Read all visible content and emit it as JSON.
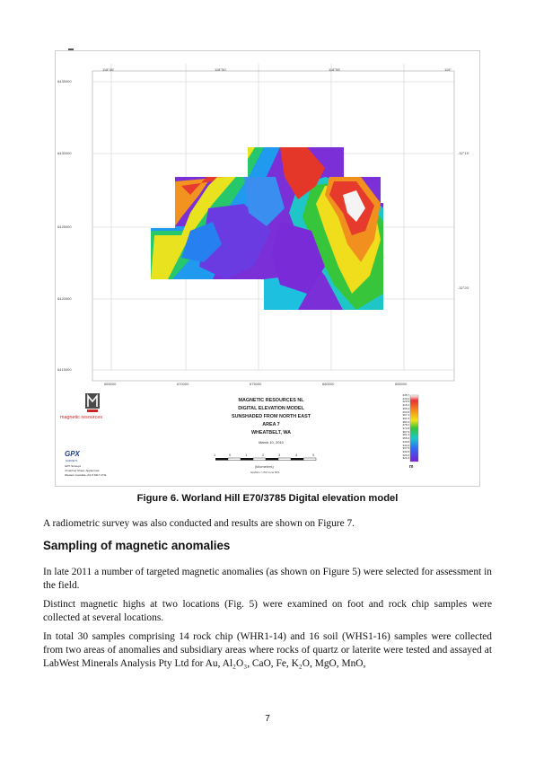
{
  "figure": {
    "top_lon_labels": [
      "118°45'",
      "118°50'",
      "118°55'",
      "119°"
    ],
    "northing_labels": [
      "6435000",
      "6430000",
      "6425000",
      "6420000",
      "6415000"
    ],
    "easting_labels": [
      "665000",
      "670000",
      "675000",
      "680000",
      "685000"
    ],
    "lat_labels": [
      "-32°15'",
      "-32°20'"
    ],
    "logo_text": "magnetic resources",
    "gpx_logo": "GPX",
    "gpx_sub": "SURVEYS",
    "gpx_address": [
      "GPX Surveys",
      "4 Ivanhoe Street, Applecross",
      "Western Australia  +61 8 9317 2711"
    ],
    "title_lines": [
      "MAGNETIC RESOURCES NL",
      "DIGITAL ELEVATION MODEL",
      "SUNSHADED FROM NORTH EAST",
      "AREA 7",
      "WHEATBELT, WA"
    ],
    "date": "March 10, 2010",
    "scale_ticks": [
      "1",
      "0",
      "1",
      "2",
      "3",
      "4",
      "5"
    ],
    "scale_unit": "(kilometres)",
    "datum": "GDA94 / UTM zone 50S",
    "legend_values": [
      "435.7",
      "430.2",
      "420.9",
      "415.2",
      "409.4",
      "404.8",
      "397.4",
      "391.5",
      "384.4",
      "378.2",
      "372.8",
      "367.5",
      "361.4",
      "355.6",
      "349.8",
      "344.0",
      "337.5",
      "332.8",
      "326.6",
      "321.0"
    ],
    "legend_unit": "m"
  },
  "caption": "Figure 6. Worland Hill E70/3785 Digital elevation model",
  "para1": "A radiometric survey was also conducted and results are shown on Figure 7.",
  "heading": "Sampling of magnetic anomalies",
  "para2": "In late 2011 a number of targeted magnetic anomalies (as shown on Figure 5) were selected for assessment in the field.",
  "para3": "Distinct magnetic highs at two locations (Fig. 5) were examined on foot and rock chip samples were collected at several locations.",
  "para4": "In total 30 samples comprising 14 rock chip (WHR1-14) and 16 soil (WHS1-16) samples were collected from two areas of anomalies and subsidiary areas where rocks of quartz or laterite were tested and assayed at LabWest Minerals Analysis Pty Ltd for Au, Al₂O₃, CaO, Fe, K₂O, MgO, MnO,",
  "page_number": "7"
}
